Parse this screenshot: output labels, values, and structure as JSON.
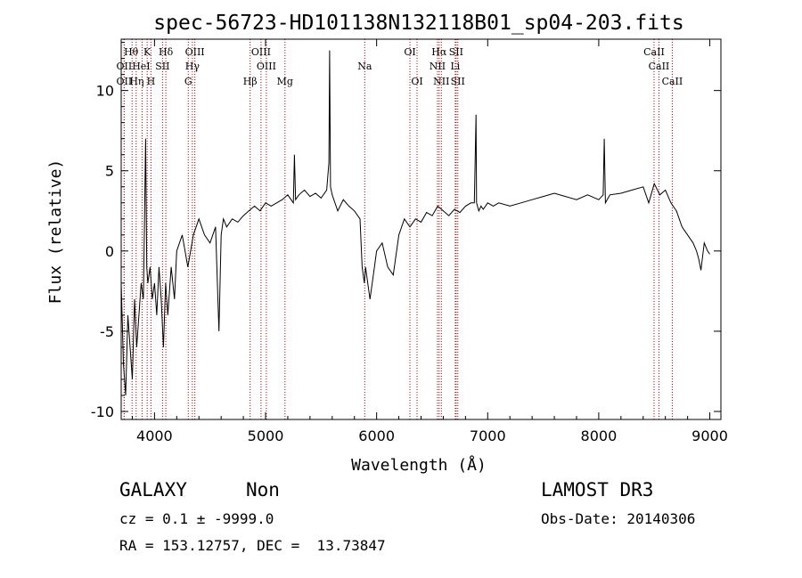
{
  "chart_data": {
    "type": "line",
    "title": "spec-56723-HD101138N132118B01_sp04-203.fits",
    "xlabel": "Wavelength (Å)",
    "ylabel": "Flux (relative)",
    "xlim": [
      3700,
      9100
    ],
    "ylim": [
      -10.5,
      13.2
    ],
    "xticks": [
      4000,
      5000,
      6000,
      7000,
      8000,
      9000
    ],
    "yticks": [
      -10,
      -5,
      0,
      5,
      10
    ],
    "series": [
      {
        "name": "spectrum",
        "x": [
          3700,
          3720,
          3740,
          3760,
          3780,
          3800,
          3820,
          3840,
          3860,
          3880,
          3900,
          3910,
          3920,
          3930,
          3940,
          3960,
          3980,
          4000,
          4020,
          4040,
          4060,
          4080,
          4100,
          4120,
          4150,
          4180,
          4200,
          4250,
          4300,
          4350,
          4400,
          4450,
          4500,
          4550,
          4580,
          4600,
          4620,
          4650,
          4700,
          4750,
          4800,
          4850,
          4900,
          4950,
          5000,
          5050,
          5100,
          5150,
          5200,
          5250,
          5260,
          5270,
          5300,
          5350,
          5400,
          5450,
          5500,
          5550,
          5570,
          5577,
          5585,
          5600,
          5650,
          5700,
          5750,
          5800,
          5850,
          5870,
          5890,
          5900,
          5920,
          5940,
          5960,
          5980,
          6000,
          6050,
          6100,
          6150,
          6200,
          6250,
          6300,
          6350,
          6400,
          6450,
          6500,
          6550,
          6600,
          6650,
          6700,
          6750,
          6800,
          6850,
          6880,
          6895,
          6900,
          6920,
          6940,
          6960,
          7000,
          7050,
          7100,
          7200,
          7300,
          7400,
          7500,
          7600,
          7700,
          7800,
          7900,
          8000,
          8040,
          8050,
          8060,
          8100,
          8200,
          8300,
          8400,
          8450,
          8500,
          8550,
          8600,
          8650,
          8700,
          8750,
          8800,
          8850,
          8880,
          8900,
          8920,
          8950,
          8980,
          9000
        ],
        "values": [
          -2,
          -7,
          -9,
          -4,
          -6,
          -8,
          -3,
          -6,
          -4,
          -2,
          -3,
          2,
          7,
          -1,
          -2,
          -1,
          -3,
          -2,
          -4,
          -1,
          -3,
          -6,
          -2,
          -4,
          -1,
          -3,
          0,
          1,
          -1,
          1,
          2,
          1,
          0.5,
          1.5,
          -5,
          1,
          2,
          1.5,
          2,
          1.8,
          2.2,
          2.5,
          2.8,
          2.5,
          3,
          2.8,
          3,
          3.2,
          3.5,
          3,
          6,
          3.2,
          3.5,
          3.8,
          3.4,
          3.6,
          3.3,
          3.8,
          5.5,
          12.5,
          4,
          3.5,
          2.5,
          3.2,
          2.8,
          2.5,
          2,
          -1,
          -2,
          -1,
          -2,
          -3,
          -2,
          -1,
          0,
          0.5,
          -1,
          -1.5,
          1,
          2,
          1.5,
          2,
          1.8,
          2.4,
          2.2,
          2.8,
          2.5,
          2.2,
          2.6,
          2.4,
          2.8,
          3,
          3,
          8.5,
          3,
          2.5,
          2.8,
          2.6,
          3,
          2.8,
          3,
          2.8,
          3,
          3.2,
          3.4,
          3.6,
          3.4,
          3.2,
          3.5,
          3.2,
          3.5,
          7,
          3,
          3.5,
          3.6,
          3.8,
          4,
          3,
          4.2,
          3.5,
          3.8,
          3,
          2.5,
          1.5,
          1,
          0.5,
          0,
          -0.5,
          -1.2,
          0.5,
          0,
          -0.2
        ]
      }
    ],
    "lines": [
      {
        "name": "OII",
        "x": 3727,
        "row": 2,
        "label_x": 3727
      },
      {
        "name": "OII",
        "x": 3727,
        "row": 3,
        "label_x": 3727
      },
      {
        "name": "Hθ",
        "x": 3798,
        "row": 1,
        "label_x": 3790
      },
      {
        "name": "Hη",
        "x": 3835,
        "row": 3,
        "label_x": 3840
      },
      {
        "name": "HeI",
        "x": 3889,
        "row": 2,
        "label_x": 3880
      },
      {
        "name": "K",
        "x": 3934,
        "row": 1,
        "label_x": 3934
      },
      {
        "name": "H",
        "x": 3968,
        "row": 3,
        "label_x": 3968
      },
      {
        "name": "Hδ",
        "x": 4102,
        "row": 1,
        "label_x": 4102
      },
      {
        "name": "SII",
        "x": 4072,
        "row": 2,
        "label_x": 4072
      },
      {
        "name": "OIII",
        "x": 4363,
        "row": 1,
        "label_x": 4363
      },
      {
        "name": "Hγ",
        "x": 4341,
        "row": 2,
        "label_x": 4341
      },
      {
        "name": "G",
        "x": 4304,
        "row": 3,
        "label_x": 4304
      },
      {
        "name": "Hβ",
        "x": 4861,
        "row": 3,
        "label_x": 4861
      },
      {
        "name": "OIII",
        "x": 4959,
        "row": 1,
        "label_x": 4959
      },
      {
        "name": "OIII",
        "x": 5007,
        "row": 2,
        "label_x": 5007
      },
      {
        "name": "Mg",
        "x": 5175,
        "row": 3,
        "label_x": 5175
      },
      {
        "name": "Na",
        "x": 5893,
        "row": 2,
        "label_x": 5893
      },
      {
        "name": "OI",
        "x": 6300,
        "row": 1,
        "label_x": 6300
      },
      {
        "name": "OI",
        "x": 6364,
        "row": 3,
        "label_x": 6364
      },
      {
        "name": "Hα",
        "x": 6563,
        "row": 1,
        "label_x": 6563
      },
      {
        "name": "NII",
        "x": 6548,
        "row": 2,
        "label_x": 6548
      },
      {
        "name": "NII",
        "x": 6583,
        "row": 3,
        "label_x": 6583
      },
      {
        "name": "SII",
        "x": 6716,
        "row": 1,
        "label_x": 6716
      },
      {
        "name": "Li",
        "x": 6708,
        "row": 2,
        "label_x": 6708
      },
      {
        "name": "SII",
        "x": 6731,
        "row": 3,
        "label_x": 6731
      },
      {
        "name": "CaII",
        "x": 8498,
        "row": 1,
        "label_x": 8498
      },
      {
        "name": "CaII",
        "x": 8542,
        "row": 2,
        "label_x": 8542
      },
      {
        "name": "CaII",
        "x": 8662,
        "row": 3,
        "label_x": 8662
      }
    ]
  },
  "info": {
    "class": "GALAXY",
    "subclass": "Non",
    "cz": "cz = 0.1 ± -9999.0",
    "coords": "RA = 153.12757, DEC =  13.73847",
    "survey": "LAMOST DR3",
    "obs_date": "Obs-Date: 20140306"
  },
  "colors": {
    "spectrum": "#000000",
    "lines": "#c00000",
    "axes": "#000000"
  }
}
